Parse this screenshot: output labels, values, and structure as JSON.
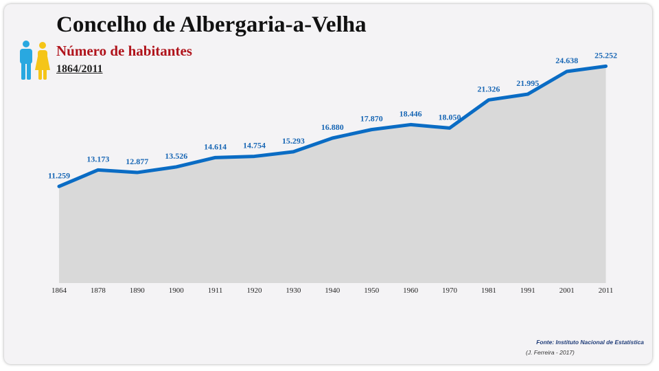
{
  "header": {
    "title": "Concelho de Albergaria-a-Velha",
    "subtitle": "Número de habitantes",
    "period": "1864/2011"
  },
  "icons": {
    "people": "man-woman-icon"
  },
  "colors": {
    "line": "#0a6cc4",
    "area": "#d9d9d9",
    "labels": "#1766b4",
    "subtitle": "#b0141c",
    "man": "#29a8e0",
    "woman": "#f5c518"
  },
  "chart_data": {
    "type": "area",
    "title": "Número de habitantes",
    "x": [
      "1864",
      "1878",
      "1890",
      "1900",
      "1911",
      "1920",
      "1930",
      "1940",
      "1950",
      "1960",
      "1970",
      "1981",
      "1991",
      "2001",
      "2011"
    ],
    "values": [
      11259,
      13173,
      12877,
      13526,
      14614,
      14754,
      15293,
      16880,
      17870,
      18446,
      18050,
      21326,
      21995,
      24638,
      25252
    ],
    "data_labels": [
      "11.259",
      "13.173",
      "12.877",
      "13.526",
      "14.614",
      "14.754",
      "15.293",
      "16.880",
      "17.870",
      "18.446",
      "18.050",
      "21.326",
      "21.995",
      "24.638",
      "25.252"
    ],
    "xlabel": "",
    "ylabel": "",
    "ylim": [
      0,
      30000
    ],
    "grid": false,
    "legend": "none"
  },
  "footer": {
    "source": "Fonte: Instituto Nacional de Estatística",
    "credit": "(J. Ferreira - 2017)"
  }
}
